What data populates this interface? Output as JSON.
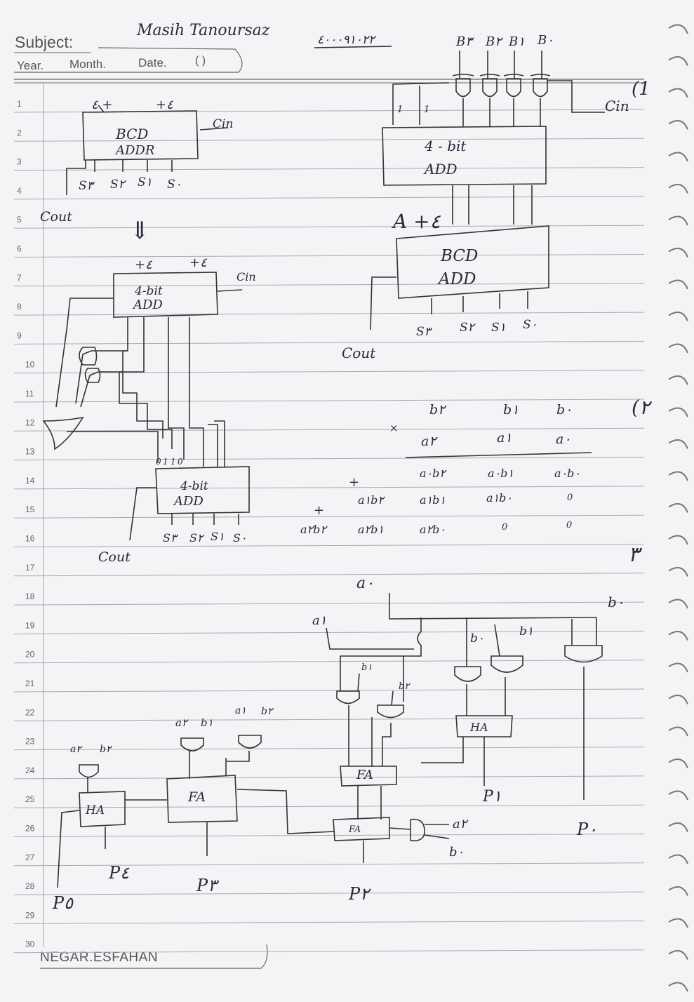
{
  "header": {
    "subject_label": "Subject:",
    "year_label": "Year.",
    "month_label": "Month.",
    "date_label": "Date.",
    "date_value": "(   )",
    "author": "Masih Tanoursaz",
    "id_number": "٤٠٠٠٩١٠٢٢"
  },
  "line_numbers": [
    "1",
    "2",
    "3",
    "4",
    "5",
    "6",
    "7",
    "8",
    "9",
    "10",
    "11",
    "12",
    "13",
    "14",
    "15",
    "16",
    "17",
    "18",
    "19",
    "20",
    "21",
    "22",
    "23",
    "24",
    "25",
    "26",
    "27",
    "28",
    "29",
    "30"
  ],
  "footer": {
    "brand": "NEGAR.ESFAHAN"
  },
  "problem1": {
    "number": "(1",
    "left_block": {
      "line1": "BCD",
      "line2": "ADDR",
      "in_a": "٤ +",
      "in_b": "+٤",
      "cin": "Cin",
      "cout": "Cout",
      "sums": [
        "S٣",
        "S٢",
        "S١",
        "S٠"
      ]
    },
    "arrow": "⇓",
    "adder_a": {
      "line1": "4-bit",
      "line2": "ADD",
      "in_a": "+٤",
      "in_b": "+٤",
      "cin": "Cin"
    },
    "adder_b": {
      "line1": "4-bit",
      "line2": "ADD",
      "cout": "Cout",
      "sums": [
        "S٣",
        "S٢",
        "S١",
        "S٠"
      ],
      "consts": [
        "0",
        "1",
        "1",
        "0"
      ]
    },
    "right_inputs": [
      "B٣",
      "B٢",
      "B١",
      "B٠"
    ],
    "right_cin": "Cin",
    "right_adder": {
      "line1": "4 - bit",
      "line2": "ADD",
      "consts": [
        "1",
        "1"
      ]
    },
    "right_bcd": {
      "line1": "BCD",
      "line2": "ADD",
      "in_label": "A +٤",
      "cout": "Cout",
      "sums": [
        "S٣",
        "S٢",
        "S١",
        "S٠"
      ]
    }
  },
  "problem2": {
    "number": "(٢",
    "row_b": [
      "b٢",
      "b١",
      "b٠"
    ],
    "times": "×",
    "row_a": [
      "a٢",
      "a١",
      "a٠"
    ],
    "pp0": [
      "a٠b٢",
      "a٠b١",
      "a٠b٠"
    ],
    "plus1": "+",
    "pp1": [
      "a١b٢",
      "a١b١",
      "a١b٠",
      "0"
    ],
    "plus2": "+",
    "pp2": [
      "a٢b٢",
      "a٢b١",
      "a٢b٠",
      "0",
      "0"
    ]
  },
  "problem3": {
    "number": "٣",
    "a0": "a٠",
    "a1": "a١",
    "b0": "b٠",
    "labels": [
      "b١",
      "b٢",
      "b٠",
      "b١",
      "a٢",
      "b١",
      "a١",
      "b٢",
      "a٢",
      "b٢",
      "a٢",
      "b٠"
    ],
    "blocks": [
      "HA",
      "FA",
      "FA",
      "FA",
      "HA"
    ],
    "outputs": [
      "P٤",
      "P٣",
      "P٢",
      "P١",
      "P٠",
      "P٥"
    ]
  }
}
